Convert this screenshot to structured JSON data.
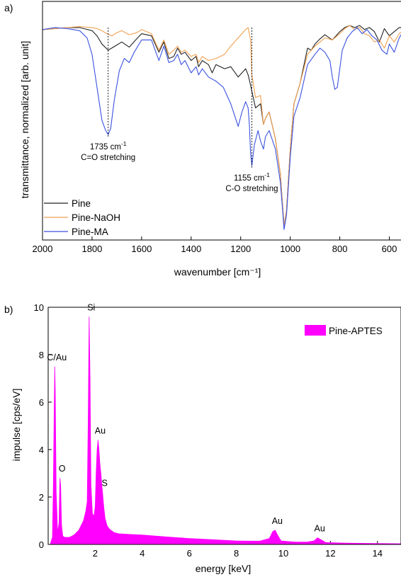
{
  "chart_data": [
    {
      "panel_label": "a)",
      "type": "line",
      "xlabel": "wavenumber [cm⁻¹]",
      "ylabel": "transmittance, normalized [arb. unit]",
      "xlim": [
        2000,
        550
      ],
      "x_reversed": true,
      "ylim": [
        0,
        1
      ],
      "x_ticks": [
        2000,
        1800,
        1600,
        1400,
        1200,
        1000,
        800,
        600
      ],
      "y_ticks_shown": false,
      "legend_position": "bottom-left",
      "annotations": [
        {
          "x": 1735,
          "label": "1735 cm",
          "sup": "-1",
          "sub": "C=O stretching",
          "y_top": 0.99,
          "y_bottom": 0.46
        },
        {
          "x": 1155,
          "label": "1155 cm",
          "sup": "-1",
          "sub": "C-O stretching",
          "y_top": 0.99,
          "y_bottom": 0.31
        }
      ],
      "series": [
        {
          "name": "Pine",
          "color": "#222222",
          "x": [
            2000,
            1950,
            1900,
            1850,
            1800,
            1780,
            1760,
            1735,
            1700,
            1680,
            1650,
            1620,
            1600,
            1560,
            1530,
            1510,
            1490,
            1470,
            1455,
            1440,
            1425,
            1400,
            1380,
            1370,
            1355,
            1330,
            1315,
            1300,
            1265,
            1240,
            1210,
            1180,
            1170,
            1160,
            1155,
            1140,
            1120,
            1108,
            1100,
            1085,
            1060,
            1040,
            1030,
            1025,
            1015,
            1000,
            985,
            960,
            930,
            915,
            900,
            880,
            860,
            830,
            800,
            780,
            760,
            740,
            720,
            700,
            680,
            660,
            640,
            620,
            600,
            580,
            560,
            550
          ],
          "y": [
            0.98,
            0.985,
            0.99,
            0.99,
            0.975,
            0.95,
            0.91,
            0.88,
            0.905,
            0.92,
            0.895,
            0.935,
            0.96,
            0.95,
            0.87,
            0.92,
            0.84,
            0.85,
            0.89,
            0.86,
            0.87,
            0.83,
            0.85,
            0.8,
            0.83,
            0.81,
            0.77,
            0.81,
            0.79,
            0.8,
            0.75,
            0.79,
            0.76,
            0.71,
            0.68,
            0.6,
            0.62,
            0.52,
            0.55,
            0.58,
            0.45,
            0.28,
            0.11,
            0.03,
            0.1,
            0.4,
            0.62,
            0.72,
            0.89,
            0.88,
            0.91,
            0.935,
            0.955,
            0.93,
            0.97,
            0.99,
            1.0,
            0.99,
            1.0,
            0.98,
            0.99,
            0.97,
            0.92,
            0.985,
            0.95,
            0.97,
            0.99,
            0.99
          ]
        },
        {
          "name": "Pine-NaOH",
          "color": "#f0a050",
          "x": [
            2000,
            1950,
            1900,
            1850,
            1800,
            1780,
            1760,
            1740,
            1720,
            1700,
            1680,
            1650,
            1620,
            1600,
            1560,
            1530,
            1510,
            1490,
            1470,
            1455,
            1440,
            1425,
            1400,
            1380,
            1370,
            1355,
            1330,
            1300,
            1265,
            1240,
            1210,
            1180,
            1170,
            1160,
            1155,
            1140,
            1120,
            1108,
            1100,
            1085,
            1060,
            1040,
            1030,
            1025,
            1015,
            1000,
            985,
            960,
            930,
            900,
            880,
            860,
            830,
            800,
            780,
            760,
            740,
            720,
            700,
            680,
            660,
            640,
            620,
            600,
            580,
            560,
            550
          ],
          "y": [
            0.98,
            0.985,
            0.99,
            0.995,
            0.99,
            0.985,
            0.975,
            0.96,
            0.95,
            0.965,
            0.975,
            0.955,
            0.965,
            0.98,
            0.96,
            0.88,
            0.93,
            0.86,
            0.88,
            0.9,
            0.87,
            0.88,
            0.85,
            0.86,
            0.82,
            0.85,
            0.83,
            0.84,
            0.86,
            0.9,
            0.94,
            0.98,
            0.99,
            0.93,
            0.76,
            0.65,
            0.66,
            0.52,
            0.55,
            0.58,
            0.45,
            0.28,
            0.11,
            0.03,
            0.1,
            0.4,
            0.62,
            0.72,
            0.86,
            0.9,
            0.92,
            0.94,
            0.93,
            0.96,
            0.985,
            1.0,
            0.98,
            0.99,
            0.96,
            0.95,
            0.92,
            0.93,
            0.89,
            0.95,
            0.92,
            0.96,
            0.97
          ]
        },
        {
          "name": "Pine-MA",
          "color": "#3a52e0",
          "x": [
            2000,
            1950,
            1900,
            1850,
            1820,
            1800,
            1780,
            1760,
            1745,
            1735,
            1725,
            1710,
            1690,
            1670,
            1650,
            1630,
            1600,
            1560,
            1530,
            1510,
            1490,
            1470,
            1455,
            1440,
            1425,
            1400,
            1380,
            1370,
            1355,
            1330,
            1300,
            1270,
            1240,
            1210,
            1195,
            1180,
            1170,
            1165,
            1160,
            1155,
            1145,
            1130,
            1120,
            1108,
            1100,
            1085,
            1060,
            1040,
            1030,
            1025,
            1015,
            1000,
            985,
            960,
            930,
            900,
            880,
            860,
            840,
            830,
            820,
            810,
            800,
            790,
            770,
            750,
            730,
            710,
            690,
            670,
            650,
            630,
            610,
            600,
            580,
            560,
            550
          ],
          "y": [
            0.98,
            0.99,
            0.985,
            0.975,
            0.94,
            0.86,
            0.7,
            0.54,
            0.49,
            0.47,
            0.5,
            0.64,
            0.78,
            0.84,
            0.82,
            0.87,
            0.93,
            0.93,
            0.83,
            0.9,
            0.82,
            0.83,
            0.86,
            0.81,
            0.83,
            0.77,
            0.8,
            0.76,
            0.79,
            0.75,
            0.73,
            0.7,
            0.62,
            0.51,
            0.58,
            0.63,
            0.6,
            0.52,
            0.38,
            0.32,
            0.42,
            0.49,
            0.44,
            0.4,
            0.46,
            0.49,
            0.4,
            0.24,
            0.09,
            0.01,
            0.08,
            0.36,
            0.56,
            0.65,
            0.81,
            0.86,
            0.89,
            0.87,
            0.83,
            0.75,
            0.69,
            0.7,
            0.79,
            0.88,
            0.94,
            0.97,
            0.99,
            0.96,
            0.98,
            0.95,
            0.93,
            0.88,
            0.86,
            0.91,
            0.87,
            0.94,
            0.96
          ]
        }
      ]
    },
    {
      "panel_label": "b)",
      "type": "area",
      "xlabel": "energy [keV]",
      "ylabel": "impulse [cps/eV]",
      "xlim": [
        0,
        15
      ],
      "ylim": [
        0,
        10
      ],
      "x_ticks": [
        2,
        4,
        6,
        8,
        10,
        12,
        14
      ],
      "y_ticks": [
        0,
        2,
        4,
        6,
        8,
        10
      ],
      "legend_position": "top-right",
      "series": [
        {
          "name": "Pine-APTES",
          "color": "#ff00ff",
          "x": [
            0.1,
            0.18,
            0.22,
            0.26,
            0.28,
            0.3,
            0.34,
            0.4,
            0.46,
            0.5,
            0.53,
            0.57,
            0.62,
            0.7,
            0.8,
            0.9,
            1.0,
            1.1,
            1.2,
            1.3,
            1.4,
            1.5,
            1.6,
            1.66,
            1.7,
            1.74,
            1.78,
            1.82,
            1.88,
            1.95,
            2.0,
            2.04,
            2.08,
            2.12,
            2.16,
            2.2,
            2.24,
            2.28,
            2.31,
            2.36,
            2.42,
            2.5,
            2.6,
            2.8,
            3.0,
            3.5,
            4.0,
            5.0,
            6.0,
            7.0,
            8.0,
            8.5,
            9.0,
            9.4,
            9.55,
            9.65,
            9.75,
            9.9,
            10.5,
            11.0,
            11.3,
            11.45,
            11.6,
            11.8,
            12.5,
            13.0,
            14.0,
            15.0
          ],
          "y": [
            0.05,
            0.3,
            2.5,
            6.0,
            7.5,
            6.5,
            2.2,
            0.5,
            0.9,
            2.8,
            2.5,
            0.8,
            0.35,
            0.3,
            0.3,
            0.3,
            0.35,
            0.4,
            0.5,
            0.6,
            0.8,
            1.0,
            1.4,
            1.8,
            5.0,
            9.6,
            7.0,
            2.5,
            1.3,
            1.2,
            1.6,
            3.0,
            4.0,
            4.4,
            4.0,
            3.4,
            3.0,
            2.5,
            2.2,
            1.6,
            1.1,
            0.8,
            0.65,
            0.5,
            0.45,
            0.42,
            0.4,
            0.32,
            0.25,
            0.2,
            0.15,
            0.14,
            0.14,
            0.25,
            0.55,
            0.6,
            0.4,
            0.15,
            0.1,
            0.1,
            0.15,
            0.28,
            0.2,
            0.08,
            0.06,
            0.05,
            0.04,
            0.03
          ]
        }
      ],
      "peak_labels": [
        {
          "label": "C/Au",
          "x": 0.28,
          "y": 7.5
        },
        {
          "label": "O",
          "x": 0.5,
          "y": 2.8
        },
        {
          "label": "Si",
          "x": 1.74,
          "y": 9.6
        },
        {
          "label": "Au",
          "x": 2.12,
          "y": 4.4
        },
        {
          "label": "S",
          "x": 2.31,
          "y": 2.2
        },
        {
          "label": "Au",
          "x": 9.65,
          "y": 0.6
        },
        {
          "label": "Au",
          "x": 11.45,
          "y": 0.28
        }
      ]
    }
  ]
}
